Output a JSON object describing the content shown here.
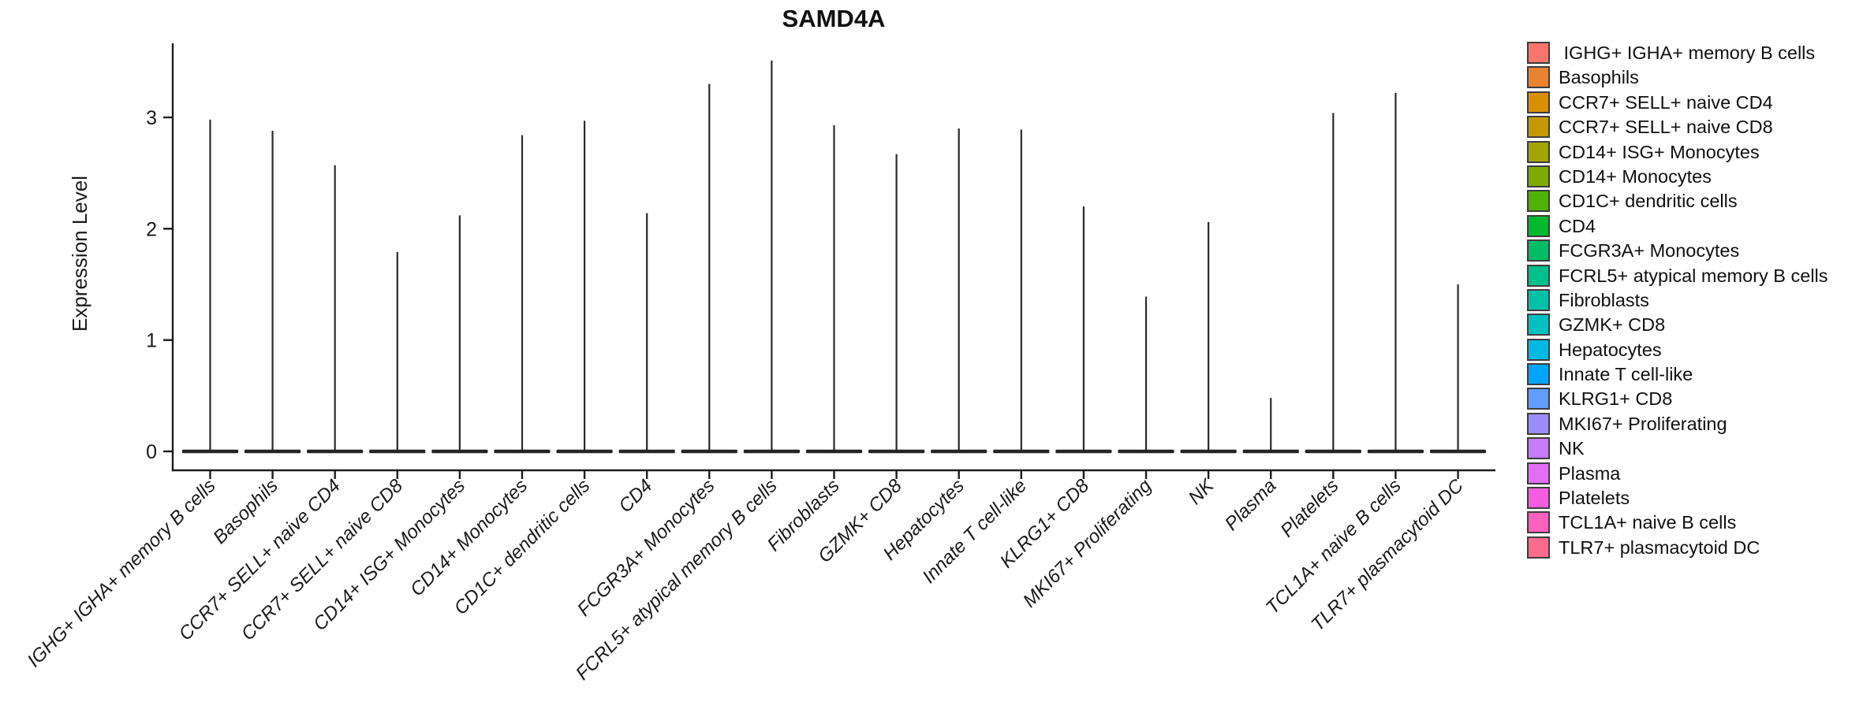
{
  "chart_data": {
    "type": "violin",
    "title": "SAMD4A",
    "ylabel": "Expression Level",
    "ylim": [
      -0.17,
      3.67
    ],
    "yticks": [
      0,
      1,
      2,
      3
    ],
    "grid": false,
    "legend_position": "right",
    "x_tick_style": "italic, rotated 45deg",
    "categories": [
      "IGHG+ IGHA+ memory B cells",
      "Basophils",
      "CCR7+ SELL+ naive CD4",
      "CCR7+ SELL+ naive CD8",
      "CD14+ ISG+ Monocytes",
      "CD14+ Monocytes",
      "CD1C+ dendritic cells",
      "CD4",
      "FCGR3A+ Monocytes",
      "FCRL5+ atypical memory B cells",
      "Fibroblasts",
      "GZMK+ CD8",
      "Hepatocytes",
      "Innate T cell-like",
      "KLRG1+ CD8",
      "MKI67+ Proliferating",
      "NK",
      "Plasma",
      "Platelets",
      "TCL1A+ naive B cells",
      "TLR7+ plasmacytoid DC"
    ],
    "series": [
      {
        "name": "peak_expression_level",
        "values": [
          2.98,
          2.88,
          2.57,
          1.79,
          2.12,
          2.84,
          2.97,
          2.14,
          3.3,
          3.51,
          2.93,
          2.67,
          2.9,
          2.89,
          2.2,
          1.39,
          2.06,
          0.48,
          3.04,
          3.22,
          1.5
        ]
      }
    ],
    "violin_baseline": 0,
    "colors": [
      "#F8766D",
      "#EA8331",
      "#D89000",
      "#C49A00",
      "#A3A500",
      "#7FAB00",
      "#4FB300",
      "#00B92F",
      "#00BC64",
      "#00C08B",
      "#00C1A7",
      "#00C0C1",
      "#00B9E3",
      "#00A5FF",
      "#619CFF",
      "#9C8DFF",
      "#C77CFF",
      "#E36EF6",
      "#F45CE1",
      "#FF61BF",
      "#FF6B8F"
    ]
  },
  "legend": {
    "items": [
      " IGHG+ IGHA+ memory B cells",
      "Basophils",
      "CCR7+ SELL+ naive CD4",
      "CCR7+ SELL+ naive CD8",
      "CD14+ ISG+ Monocytes",
      "CD14+ Monocytes",
      "CD1C+ dendritic cells",
      "CD4",
      "FCGR3A+ Monocytes",
      "FCRL5+ atypical memory B cells",
      "Fibroblasts",
      "GZMK+ CD8",
      "Hepatocytes",
      "Innate T cell-like",
      "KLRG1+ CD8",
      "MKI67+ Proliferating",
      "NK",
      "Plasma",
      "Platelets",
      "TCL1A+ naive B cells",
      "TLR7+ plasmacytoid DC"
    ]
  }
}
